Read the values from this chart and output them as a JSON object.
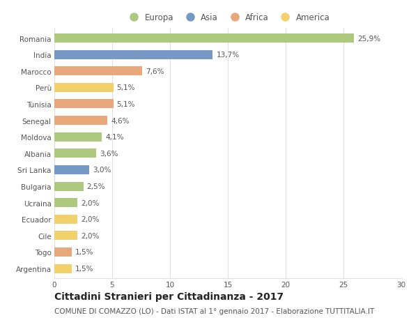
{
  "categories": [
    "Romania",
    "India",
    "Marocco",
    "Perù",
    "Tunisia",
    "Senegal",
    "Moldova",
    "Albania",
    "Sri Lanka",
    "Bulgaria",
    "Ucraina",
    "Ecuador",
    "Cile",
    "Togo",
    "Argentina"
  ],
  "values": [
    25.9,
    13.7,
    7.6,
    5.1,
    5.1,
    4.6,
    4.1,
    3.6,
    3.0,
    2.5,
    2.0,
    2.0,
    2.0,
    1.5,
    1.5
  ],
  "labels": [
    "25,9%",
    "13,7%",
    "7,6%",
    "5,1%",
    "5,1%",
    "4,6%",
    "4,1%",
    "3,6%",
    "3,0%",
    "2,5%",
    "2,0%",
    "2,0%",
    "2,0%",
    "1,5%",
    "1,5%"
  ],
  "continents": [
    "Europa",
    "Asia",
    "Africa",
    "America",
    "Africa",
    "Africa",
    "Europa",
    "Europa",
    "Asia",
    "Europa",
    "Europa",
    "America",
    "America",
    "Africa",
    "America"
  ],
  "colors": {
    "Europa": "#adc97e",
    "Asia": "#7599c2",
    "Africa": "#e8a87c",
    "America": "#f2d06b"
  },
  "xlim": [
    0,
    30
  ],
  "xticks": [
    0,
    5,
    10,
    15,
    20,
    25,
    30
  ],
  "title": "Cittadini Stranieri per Cittadinanza - 2017",
  "subtitle": "COMUNE DI COMAZZO (LO) - Dati ISTAT al 1° gennaio 2017 - Elaborazione TUTTITALIA.IT",
  "background_color": "#ffffff",
  "grid_color": "#e0e0e0",
  "bar_height": 0.55,
  "title_fontsize": 10,
  "subtitle_fontsize": 7.5,
  "label_fontsize": 7.5,
  "tick_fontsize": 7.5,
  "legend_fontsize": 8.5,
  "legend_order": [
    "Europa",
    "Asia",
    "Africa",
    "America"
  ]
}
